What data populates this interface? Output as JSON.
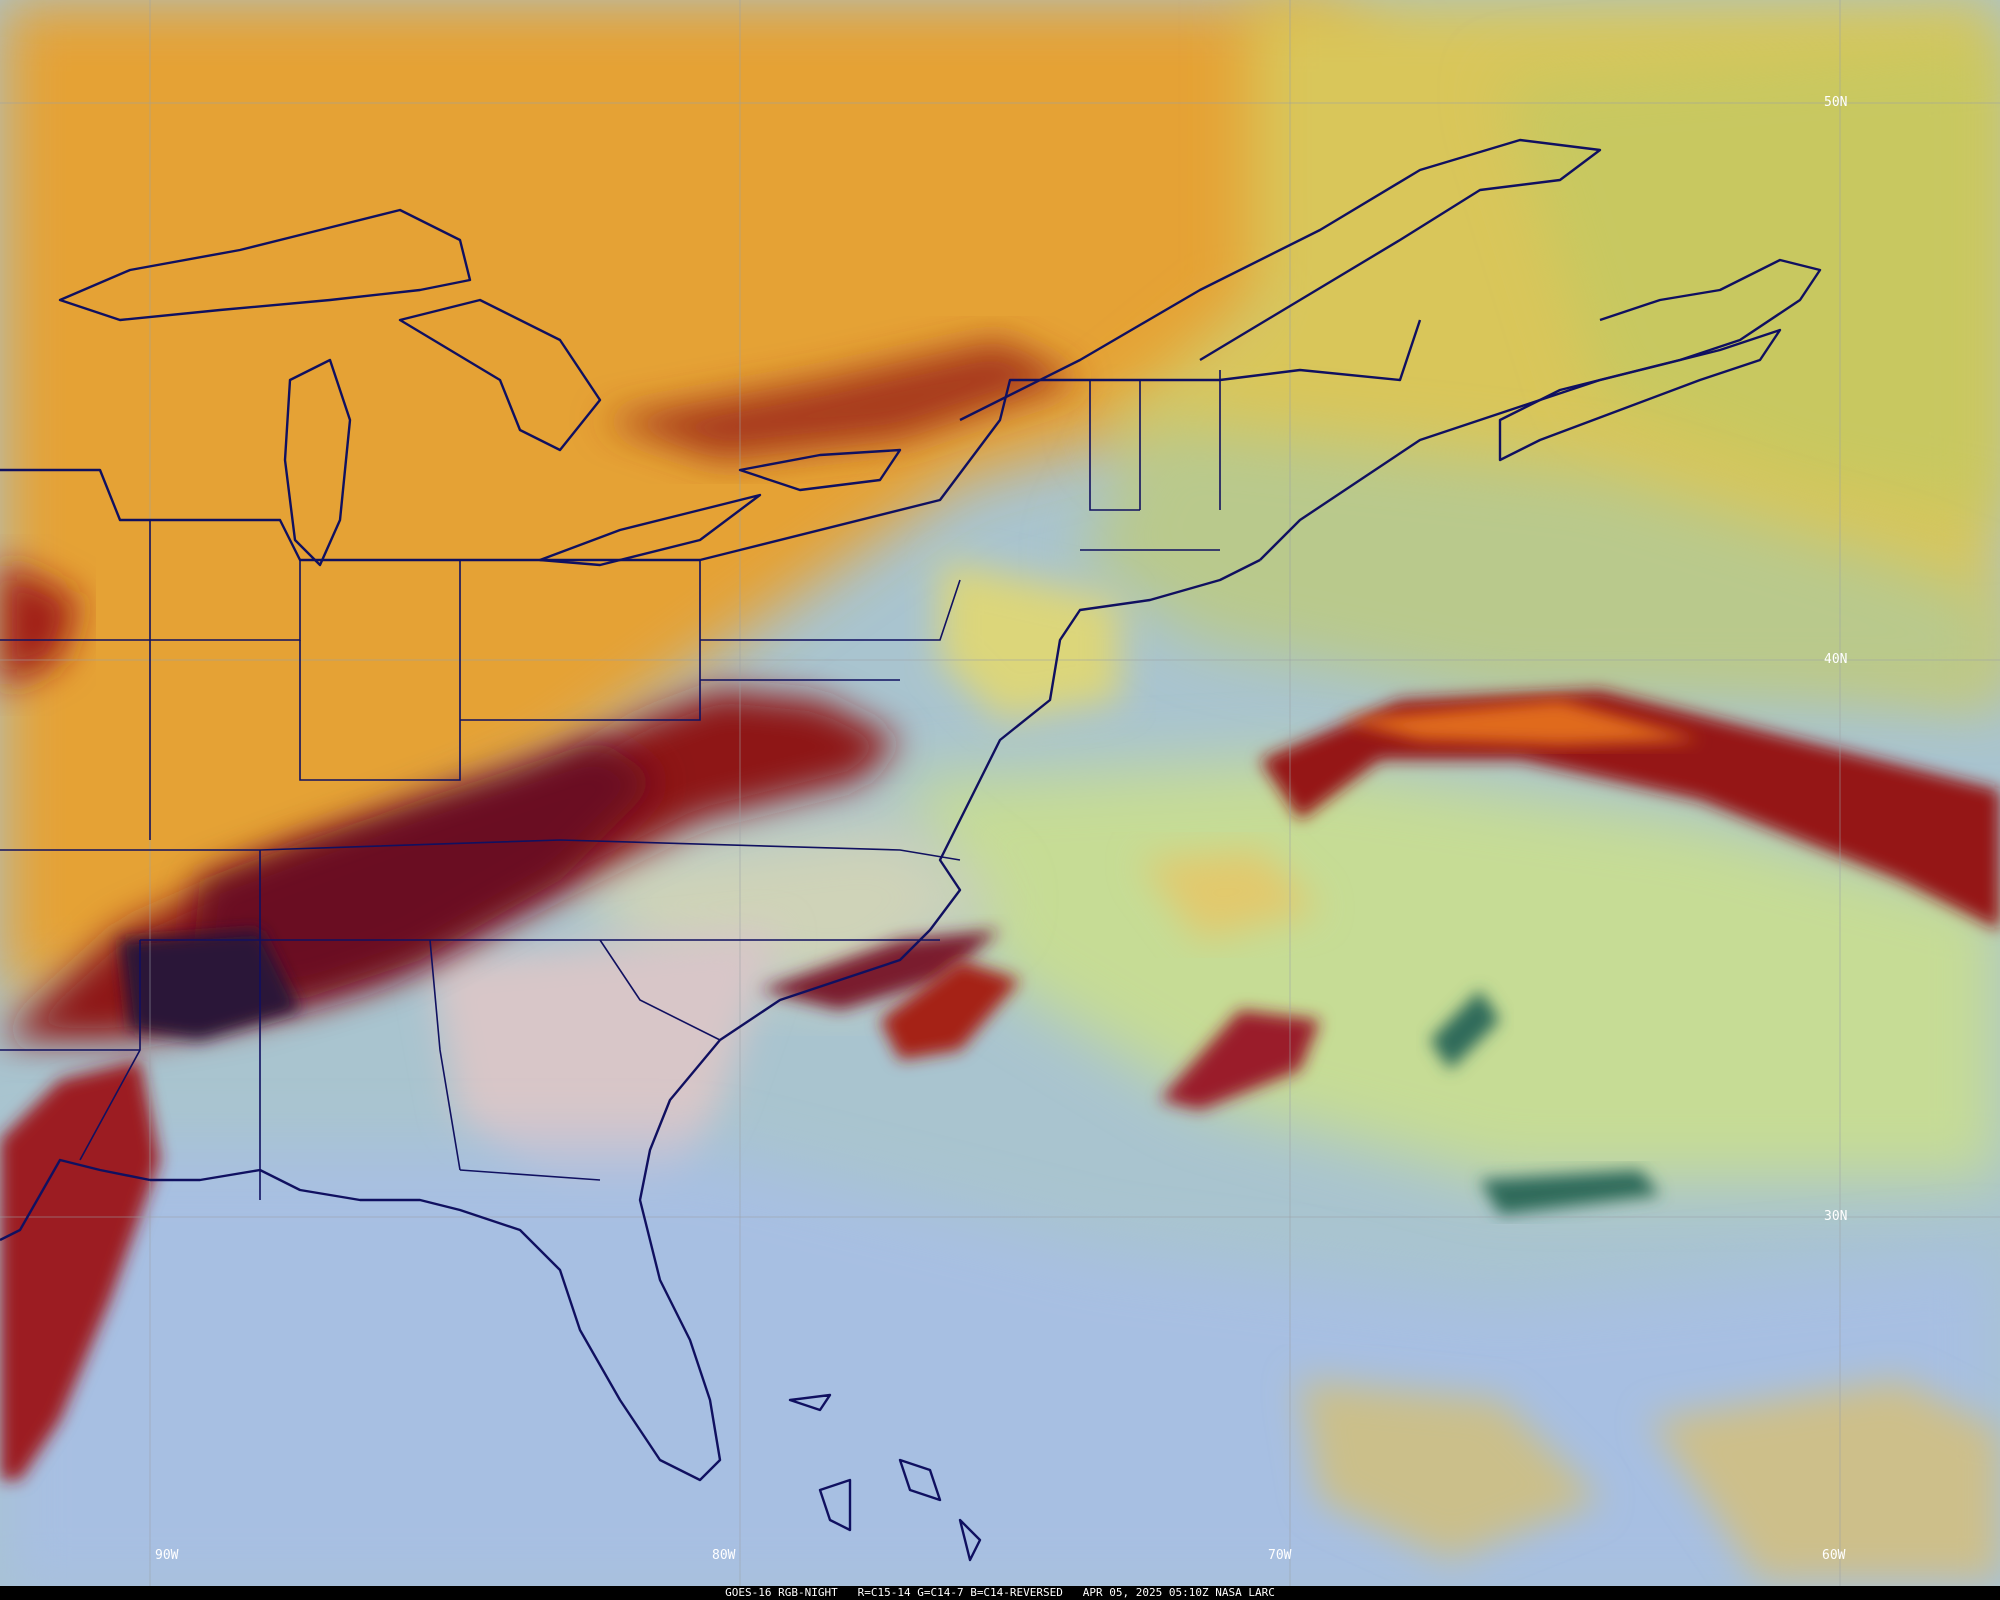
{
  "footer": {
    "caption": "GOES-16 RGB-NIGHT   R=C15-14 G=C14-7 B=C14-REVERSED   APR 05, 2025 05:10Z NASA LARC"
  },
  "longitude_labels": [
    "90W",
    "80W",
    "70W",
    "60W"
  ],
  "latitude_labels": [
    "50N",
    "40N",
    "30N"
  ],
  "colors": {
    "ocean_clear": "#a9c4cf",
    "land_warm": "#e7a633",
    "high_cloud_band": "#8e1516",
    "low_cloud_green": "#c9dd8c",
    "boundary_line": "#101060",
    "graticule": "#9aa0a6"
  }
}
